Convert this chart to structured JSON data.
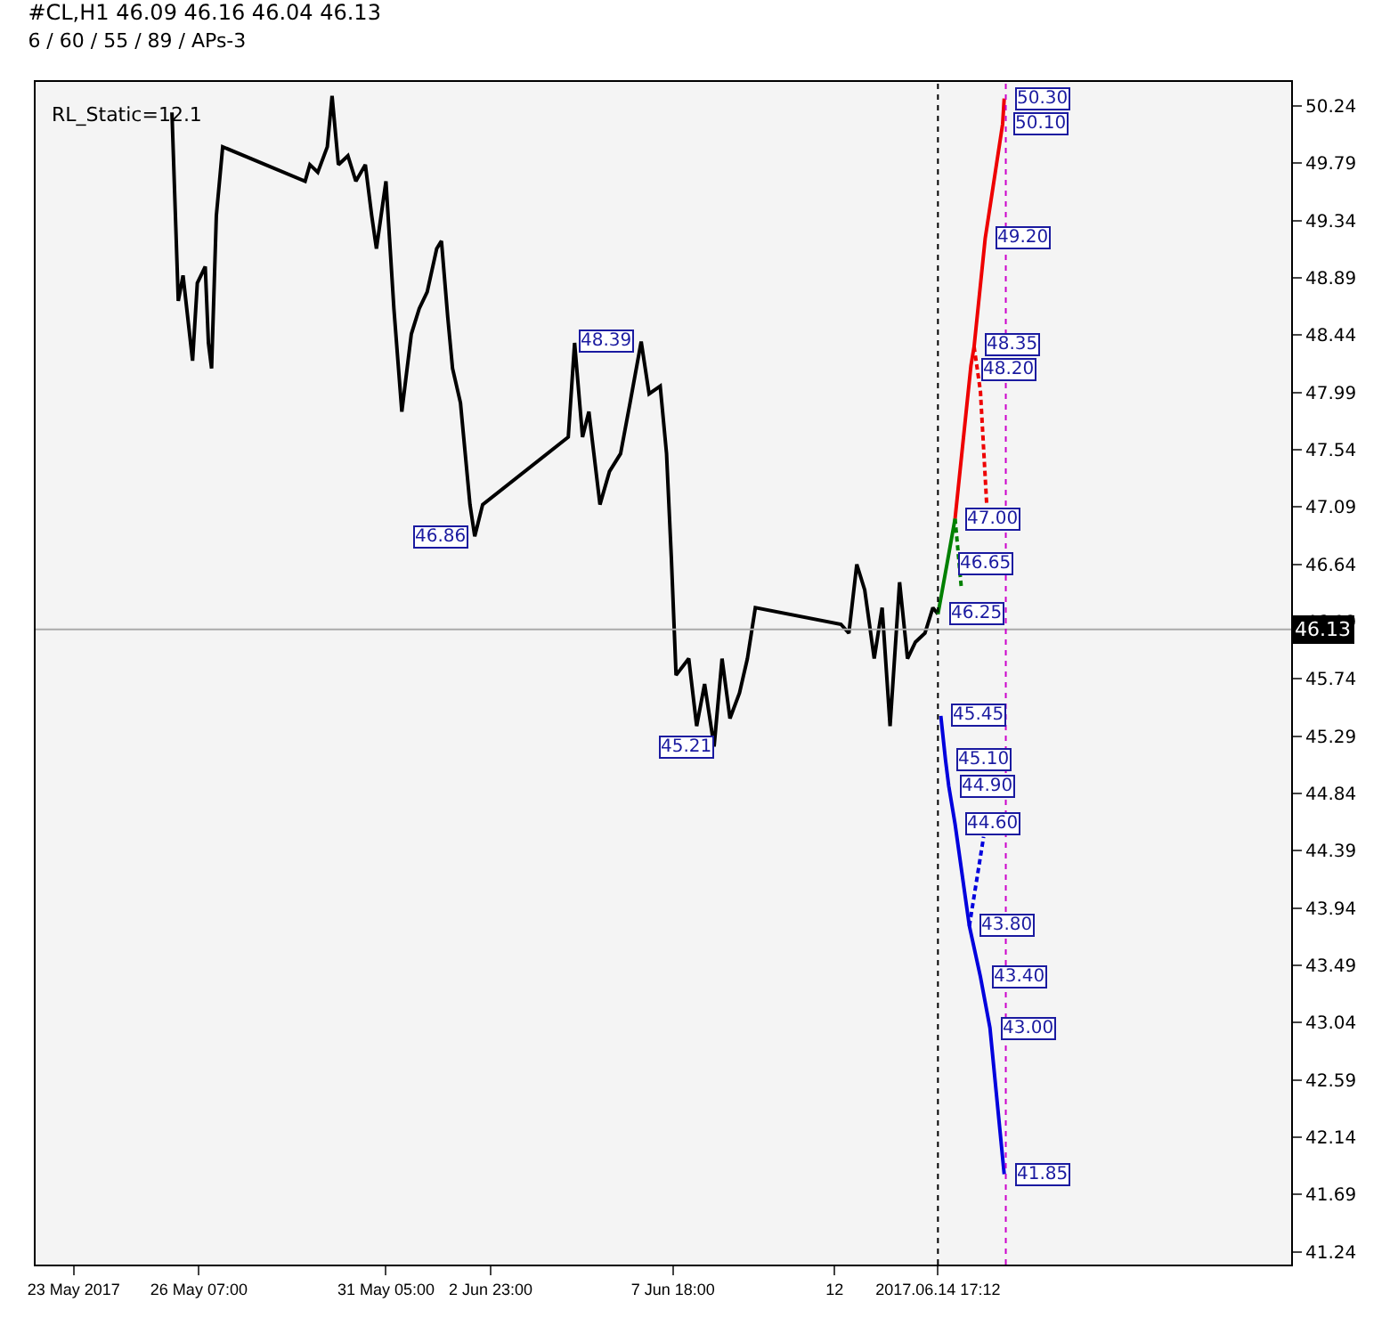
{
  "chart_data": {
    "type": "line",
    "title": "#CL,H1 46.09 46.16 46.04 46.13",
    "subtitle": "6 / 60 / 55 / 89 / APs-3",
    "x": [
      "2017-05-25T14:00",
      "2017-05-25T18:00",
      "2017-05-25T21:00",
      "2017-05-26T03:00",
      "2017-05-26T06:00",
      "2017-05-26T11:00",
      "2017-05-26T13:00",
      "2017-05-26T15:00",
      "2017-05-26T18:00",
      "2017-05-26T22:00",
      "2017-05-29T02:00",
      "2017-05-29T05:00",
      "2017-05-29T10:00",
      "2017-05-29T16:00",
      "2017-05-29T19:00",
      "2017-05-29T23:00",
      "2017-05-30T05:00",
      "2017-05-30T10:00",
      "2017-05-30T16:00",
      "2017-05-30T20:00",
      "2017-05-30T23:00",
      "2017-05-31T05:00",
      "2017-05-31T10:00",
      "2017-05-31T15:00",
      "2017-05-31T21:00",
      "2017-06-01T02:00",
      "2017-06-01T07:00",
      "2017-06-01T13:00",
      "2017-06-01T16:00",
      "2017-06-01T20:00",
      "2017-06-01T23:00",
      "2017-06-02T04:00",
      "2017-06-02T10:00",
      "2017-06-02T13:00",
      "2017-06-02T18:00",
      "2017-06-05T00:00",
      "2017-06-05T04:00",
      "2017-06-05T09:00",
      "2017-06-05T13:00",
      "2017-06-05T20:00",
      "2017-06-06T02:00",
      "2017-06-06T09:00",
      "2017-06-06T15:00",
      "2017-06-06T22:00",
      "2017-06-07T03:00",
      "2017-06-07T10:00",
      "2017-06-07T14:00",
      "2017-06-07T17:00",
      "2017-06-07T20:00",
      "2017-06-08T04:00",
      "2017-06-08T09:00",
      "2017-06-08T14:00",
      "2017-06-08T20:00",
      "2017-06-09T01:00",
      "2017-06-09T06:00",
      "2017-06-09T12:00",
      "2017-06-09T17:00",
      "2017-06-09T22:00",
      "2017-06-12T04:00",
      "2017-06-12T09:00",
      "2017-06-12T14:00",
      "2017-06-12T19:00",
      "2017-06-13T01:00",
      "2017-06-13T06:00",
      "2017-06-13T11:00",
      "2017-06-13T17:00",
      "2017-06-13T22:00",
      "2017-06-14T03:00",
      "2017-06-14T09:00",
      "2017-06-14T14:00",
      "2017-06-14T17:12"
    ],
    "xlim": [
      "2017-05-22T00:00",
      "2017-06-24T00:00"
    ],
    "xticks": [
      {
        "value": "2017-05-23",
        "label": "23 May 2017"
      },
      {
        "value": "2017-05-26T07:00",
        "label": "26 May 07:00"
      },
      {
        "value": "2017-05-31T05:00",
        "label": "31 May 05:00"
      },
      {
        "value": "2017-06-02T23:00",
        "label": "2 Jun 23:00"
      },
      {
        "value": "2017-06-07T18:00",
        "label": "7 Jun 18:00"
      },
      {
        "value": "2017-06-12",
        "label": "12"
      },
      {
        "value": "2017-06-14T17:12",
        "label": "2017.06.14 17:12"
      }
    ],
    "series": [
      {
        "color": "#000000",
        "line_style": "solid",
        "values": [
          50.19,
          48.71,
          48.91,
          48.24,
          48.85,
          48.98,
          48.38,
          48.18,
          49.38,
          49.92,
          49.65,
          49.78,
          49.72,
          49.92,
          50.32,
          49.78,
          49.85,
          49.65,
          49.78,
          49.38,
          49.12,
          49.65,
          48.65,
          47.84,
          48.45,
          48.65,
          48.78,
          49.12,
          49.18,
          48.58,
          48.18,
          47.91,
          47.11,
          46.86,
          47.11,
          47.64,
          48.38,
          47.64,
          47.84,
          47.11,
          47.37,
          47.51,
          47.91,
          48.39,
          47.98,
          48.04,
          47.51,
          46.7,
          45.77,
          45.9,
          45.37,
          45.7,
          45.21,
          45.9,
          45.43,
          45.63,
          45.9,
          46.3,
          46.17,
          46.1,
          46.64,
          46.44,
          45.9,
          46.3,
          45.37,
          46.5,
          45.9,
          46.03,
          46.1,
          46.3,
          46.25
        ]
      },
      {
        "color": "#008000",
        "line_style": "solid",
        "x": [
          "2017-06-14T17:12",
          "2017-06-14T23:00",
          "2017-06-15T04:00"
        ],
        "values": [
          46.25,
          46.65,
          47.0
        ]
      },
      {
        "color": "#008000",
        "line_style": "dashed",
        "x": [
          "2017-06-15T04:00",
          "2017-06-15T08:00"
        ],
        "values": [
          47.0,
          46.45
        ]
      },
      {
        "color": "#ee0000",
        "line_style": "solid",
        "x": [
          "2017-06-15T04:00",
          "2017-06-15T14:00",
          "2017-06-15T16:00",
          "2017-06-15T23:00",
          "2017-06-16T10:00",
          "2017-06-16T11:00"
        ],
        "values": [
          47.0,
          48.2,
          48.35,
          49.2,
          50.1,
          50.3
        ]
      },
      {
        "color": "#ee0000",
        "line_style": "dashed",
        "x": [
          "2017-06-15T16:00",
          "2017-06-15T20:00",
          "2017-06-16T00:00"
        ],
        "values": [
          48.35,
          48.0,
          47.1
        ]
      },
      {
        "color": "#0000dd",
        "line_style": "solid",
        "x": [
          "2017-06-14T19:00",
          "2017-06-14T22:00",
          "2017-06-15T00:00",
          "2017-06-15T04:00",
          "2017-06-15T13:00",
          "2017-06-15T20:00",
          "2017-06-16T02:00",
          "2017-06-16T11:00"
        ],
        "values": [
          45.45,
          45.1,
          44.9,
          44.6,
          43.8,
          43.4,
          43.0,
          41.85
        ]
      },
      {
        "color": "#0000dd",
        "line_style": "dashed",
        "x": [
          "2017-06-15T13:00",
          "2017-06-15T22:00"
        ],
        "values": [
          43.8,
          44.5
        ]
      }
    ],
    "ylim": [
      41.14,
      50.43
    ],
    "yticks": [
      41.24,
      41.69,
      42.14,
      42.59,
      43.04,
      43.49,
      43.94,
      44.39,
      44.84,
      45.29,
      45.74,
      46.19,
      46.64,
      47.09,
      47.54,
      47.99,
      48.44,
      48.89,
      49.34,
      49.79,
      50.24
    ],
    "grid": false,
    "marker": "none",
    "ref_lines": [
      {
        "axis": "y",
        "value": 46.13,
        "label": "46.13",
        "color": "#aaaaaa",
        "line_style": "solid"
      },
      {
        "axis": "x",
        "value": "2017-06-14T17:12",
        "color": "#000000",
        "line_style": "dotted"
      },
      {
        "axis": "x",
        "value": "2017-06-16T12:00",
        "color": "#cc00cc",
        "line_style": "dotted"
      }
    ],
    "annotations": [
      "RL_Static=12.1",
      {
        "text": "48.39",
        "x": "2017-06-06T22:00",
        "y": 48.39
      },
      {
        "text": "46.86",
        "x": "2017-06-02T13:00",
        "y": 46.86
      },
      {
        "text": "45.21",
        "x": "2017-06-09T01:00",
        "y": 45.21
      },
      {
        "text": "50.30",
        "x": "2017-06-16T11:00",
        "y": 50.3
      },
      {
        "text": "50.10",
        "x": "2017-06-16T10:00",
        "y": 50.1
      },
      {
        "text": "49.20",
        "x": "2017-06-15T23:00",
        "y": 49.2
      },
      {
        "text": "48.35",
        "x": "2017-06-15T16:00",
        "y": 48.35
      },
      {
        "text": "48.20",
        "x": "2017-06-15T14:00",
        "y": 48.2
      },
      {
        "text": "47.00",
        "x": "2017-06-15T04:00",
        "y": 47.0
      },
      {
        "text": "46.65",
        "x": "2017-06-14T23:00",
        "y": 46.65
      },
      {
        "text": "46.25",
        "x": "2017-06-14T17:12",
        "y": 46.25
      },
      {
        "text": "45.45",
        "x": "2017-06-14T19:00",
        "y": 45.45
      },
      {
        "text": "45.10",
        "x": "2017-06-14T22:00",
        "y": 45.1
      },
      {
        "text": "44.90",
        "x": "2017-06-15T00:00",
        "y": 44.9
      },
      {
        "text": "44.60",
        "x": "2017-06-15T04:00",
        "y": 44.6
      },
      {
        "text": "43.80",
        "x": "2017-06-15T13:00",
        "y": 43.8
      },
      {
        "text": "43.40",
        "x": "2017-06-15T20:00",
        "y": 43.4
      },
      {
        "text": "43.00",
        "x": "2017-06-16T02:00",
        "y": 43.0
      },
      {
        "text": "41.85",
        "x": "2017-06-16T11:00",
        "y": 41.85
      }
    ]
  }
}
